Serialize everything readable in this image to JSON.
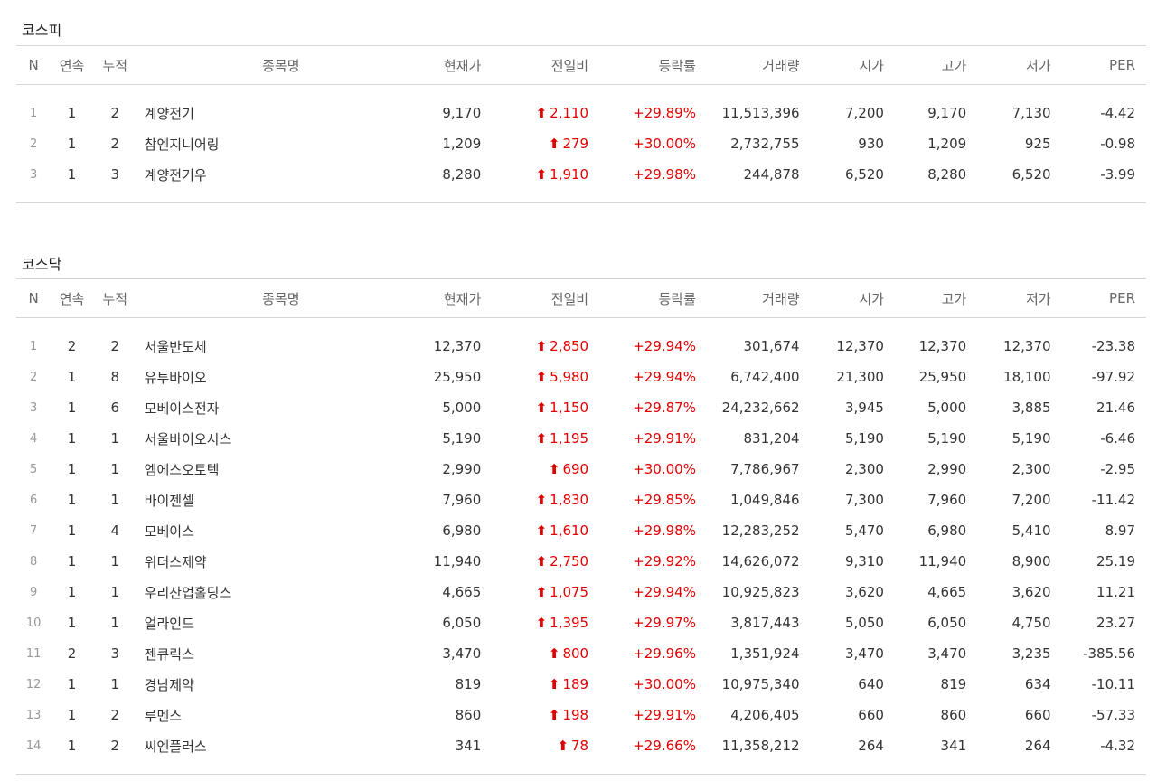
{
  "colors": {
    "up": "#e00000",
    "border": "#d6d6d6",
    "header_text": "#666666"
  },
  "icons": {
    "up_arrow": "up-arrow-icon"
  },
  "columns": [
    "N",
    "연속",
    "누적",
    "종목명",
    "현재가",
    "전일비",
    "등락률",
    "거래량",
    "시가",
    "고가",
    "저가",
    "PER"
  ],
  "sections": [
    {
      "title": "코스피",
      "rows": [
        {
          "n": "1",
          "streak": "1",
          "cum": "2",
          "name": "계양전기",
          "price": "9,170",
          "change": "2,110",
          "rate": "+29.89%",
          "volume": "11,513,396",
          "open": "7,200",
          "high": "9,170",
          "low": "7,130",
          "per": "-4.42"
        },
        {
          "n": "2",
          "streak": "1",
          "cum": "2",
          "name": "참엔지니어링",
          "price": "1,209",
          "change": "279",
          "rate": "+30.00%",
          "volume": "2,732,755",
          "open": "930",
          "high": "1,209",
          "low": "925",
          "per": "-0.98"
        },
        {
          "n": "3",
          "streak": "1",
          "cum": "3",
          "name": "계양전기우",
          "price": "8,280",
          "change": "1,910",
          "rate": "+29.98%",
          "volume": "244,878",
          "open": "6,520",
          "high": "8,280",
          "low": "6,520",
          "per": "-3.99"
        }
      ]
    },
    {
      "title": "코스닥",
      "rows": [
        {
          "n": "1",
          "streak": "2",
          "cum": "2",
          "name": "서울반도체",
          "price": "12,370",
          "change": "2,850",
          "rate": "+29.94%",
          "volume": "301,674",
          "open": "12,370",
          "high": "12,370",
          "low": "12,370",
          "per": "-23.38"
        },
        {
          "n": "2",
          "streak": "1",
          "cum": "8",
          "name": "유투바이오",
          "price": "25,950",
          "change": "5,980",
          "rate": "+29.94%",
          "volume": "6,742,400",
          "open": "21,300",
          "high": "25,950",
          "low": "18,100",
          "per": "-97.92"
        },
        {
          "n": "3",
          "streak": "1",
          "cum": "6",
          "name": "모베이스전자",
          "price": "5,000",
          "change": "1,150",
          "rate": "+29.87%",
          "volume": "24,232,662",
          "open": "3,945",
          "high": "5,000",
          "low": "3,885",
          "per": "21.46"
        },
        {
          "n": "4",
          "streak": "1",
          "cum": "1",
          "name": "서울바이오시스",
          "price": "5,190",
          "change": "1,195",
          "rate": "+29.91%",
          "volume": "831,204",
          "open": "5,190",
          "high": "5,190",
          "low": "5,190",
          "per": "-6.46"
        },
        {
          "n": "5",
          "streak": "1",
          "cum": "1",
          "name": "엠에스오토텍",
          "price": "2,990",
          "change": "690",
          "rate": "+30.00%",
          "volume": "7,786,967",
          "open": "2,300",
          "high": "2,990",
          "low": "2,300",
          "per": "-2.95"
        },
        {
          "n": "6",
          "streak": "1",
          "cum": "1",
          "name": "바이젠셀",
          "price": "7,960",
          "change": "1,830",
          "rate": "+29.85%",
          "volume": "1,049,846",
          "open": "7,300",
          "high": "7,960",
          "low": "7,200",
          "per": "-11.42"
        },
        {
          "n": "7",
          "streak": "1",
          "cum": "4",
          "name": "모베이스",
          "price": "6,980",
          "change": "1,610",
          "rate": "+29.98%",
          "volume": "12,283,252",
          "open": "5,470",
          "high": "6,980",
          "low": "5,410",
          "per": "8.97"
        },
        {
          "n": "8",
          "streak": "1",
          "cum": "1",
          "name": "위더스제약",
          "price": "11,940",
          "change": "2,750",
          "rate": "+29.92%",
          "volume": "14,626,072",
          "open": "9,310",
          "high": "11,940",
          "low": "8,900",
          "per": "25.19"
        },
        {
          "n": "9",
          "streak": "1",
          "cum": "1",
          "name": "우리산업홀딩스",
          "price": "4,665",
          "change": "1,075",
          "rate": "+29.94%",
          "volume": "10,925,823",
          "open": "3,620",
          "high": "4,665",
          "low": "3,620",
          "per": "11.21"
        },
        {
          "n": "10",
          "streak": "1",
          "cum": "1",
          "name": "얼라인드",
          "price": "6,050",
          "change": "1,395",
          "rate": "+29.97%",
          "volume": "3,817,443",
          "open": "5,050",
          "high": "6,050",
          "low": "4,750",
          "per": "23.27"
        },
        {
          "n": "11",
          "streak": "2",
          "cum": "3",
          "name": "젠큐릭스",
          "price": "3,470",
          "change": "800",
          "rate": "+29.96%",
          "volume": "1,351,924",
          "open": "3,470",
          "high": "3,470",
          "low": "3,235",
          "per": "-385.56"
        },
        {
          "n": "12",
          "streak": "1",
          "cum": "1",
          "name": "경남제약",
          "price": "819",
          "change": "189",
          "rate": "+30.00%",
          "volume": "10,975,340",
          "open": "640",
          "high": "819",
          "low": "634",
          "per": "-10.11"
        },
        {
          "n": "13",
          "streak": "1",
          "cum": "2",
          "name": "루멘스",
          "price": "860",
          "change": "198",
          "rate": "+29.91%",
          "volume": "4,206,405",
          "open": "660",
          "high": "860",
          "low": "660",
          "per": "-57.33"
        },
        {
          "n": "14",
          "streak": "1",
          "cum": "2",
          "name": "씨엔플러스",
          "price": "341",
          "change": "78",
          "rate": "+29.66%",
          "volume": "11,358,212",
          "open": "264",
          "high": "341",
          "low": "264",
          "per": "-4.32"
        }
      ]
    }
  ]
}
